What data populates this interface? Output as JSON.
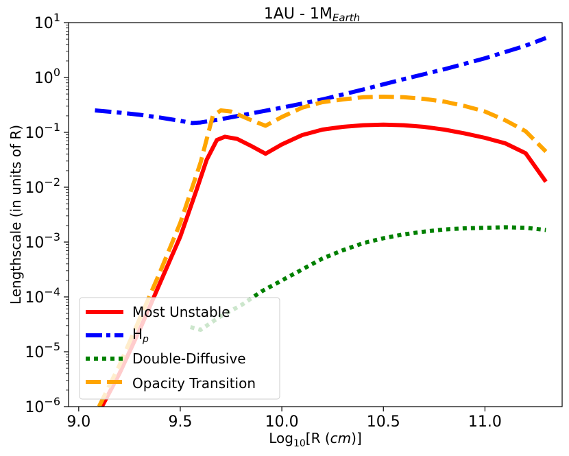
{
  "chart_data": {
    "type": "line",
    "title": "1AU - 1M",
    "title_sub": "Earth",
    "xlabel_pre": "Log",
    "xlabel_sub": "10",
    "xlabel_mid": "[R (",
    "xlabel_ital": "cm",
    "xlabel_post": ")]",
    "ylabel": "Lengthscale (in units of R)",
    "xlim": [
      8.95,
      11.38
    ],
    "ylim_log10": [
      -6,
      1
    ],
    "y_scale": "log",
    "x_ticks": [
      9.0,
      9.5,
      10.0,
      10.5,
      11.0
    ],
    "x_tick_labels": [
      "9.0",
      "9.5",
      "10.0",
      "10.5",
      "11.0"
    ],
    "y_tick_exponents": [
      "1",
      "0",
      "−1",
      "−2",
      "−3",
      "−4",
      "−5",
      "−6"
    ],
    "y_tick_base": "10",
    "legend_position": "lower-left",
    "series": [
      {
        "name": "Most Unstable",
        "color": "#ff0000",
        "style": "solid",
        "x": [
          9.05,
          9.1,
          9.2,
          9.3,
          9.4,
          9.5,
          9.58,
          9.63,
          9.68,
          9.72,
          9.78,
          9.85,
          9.92,
          10.0,
          10.1,
          10.2,
          10.3,
          10.4,
          10.5,
          10.6,
          10.7,
          10.8,
          10.9,
          11.0,
          11.1,
          11.2,
          11.3
        ],
        "log10_y": [
          -6.6,
          -6.1,
          -5.4,
          -4.6,
          -3.75,
          -2.9,
          -2.05,
          -1.5,
          -1.14,
          -1.08,
          -1.12,
          -1.25,
          -1.39,
          -1.22,
          -1.05,
          -0.95,
          -0.9,
          -0.87,
          -0.86,
          -0.87,
          -0.9,
          -0.95,
          -1.02,
          -1.1,
          -1.2,
          -1.38,
          -1.9
        ]
      },
      {
        "name": "H",
        "name_sub": "p",
        "color": "#0000ff",
        "style": "dashdot",
        "x": [
          9.08,
          9.2,
          9.3,
          9.4,
          9.5,
          9.56,
          9.6,
          9.7,
          9.8,
          9.9,
          10.0,
          10.2,
          10.4,
          10.6,
          10.8,
          11.0,
          11.2,
          11.3
        ],
        "log10_y": [
          -0.6,
          -0.64,
          -0.68,
          -0.73,
          -0.79,
          -0.83,
          -0.82,
          -0.76,
          -0.69,
          -0.62,
          -0.55,
          -0.4,
          -0.22,
          -0.03,
          0.15,
          0.35,
          0.58,
          0.72
        ]
      },
      {
        "name": "Double-Diffusive",
        "color": "#008000",
        "style": "dotted",
        "x": [
          9.55,
          9.6,
          9.7,
          9.8,
          9.9,
          10.0,
          10.1,
          10.2,
          10.3,
          10.4,
          10.5,
          10.6,
          10.7,
          10.8,
          10.9,
          11.0,
          11.1,
          11.2,
          11.3
        ],
        "log10_y": [
          -4.55,
          -4.6,
          -4.35,
          -4.15,
          -3.9,
          -3.7,
          -3.5,
          -3.3,
          -3.15,
          -3.02,
          -2.93,
          -2.86,
          -2.81,
          -2.77,
          -2.75,
          -2.74,
          -2.73,
          -2.74,
          -2.78
        ]
      },
      {
        "name": "Opacity Transition",
        "color": "#ffa500",
        "style": "dashed",
        "x": [
          9.1,
          9.2,
          9.3,
          9.4,
          9.5,
          9.6,
          9.66,
          9.7,
          9.75,
          9.8,
          9.85,
          9.92,
          10.0,
          10.1,
          10.2,
          10.3,
          10.4,
          10.5,
          10.6,
          10.7,
          10.8,
          10.9,
          11.0,
          11.1,
          11.2,
          11.3
        ],
        "log10_y": [
          -6.0,
          -5.25,
          -4.4,
          -3.55,
          -2.65,
          -1.55,
          -0.7,
          -0.6,
          -0.62,
          -0.7,
          -0.78,
          -0.88,
          -0.72,
          -0.55,
          -0.45,
          -0.4,
          -0.36,
          -0.35,
          -0.36,
          -0.39,
          -0.44,
          -0.52,
          -0.62,
          -0.78,
          -0.98,
          -1.35
        ]
      }
    ]
  }
}
